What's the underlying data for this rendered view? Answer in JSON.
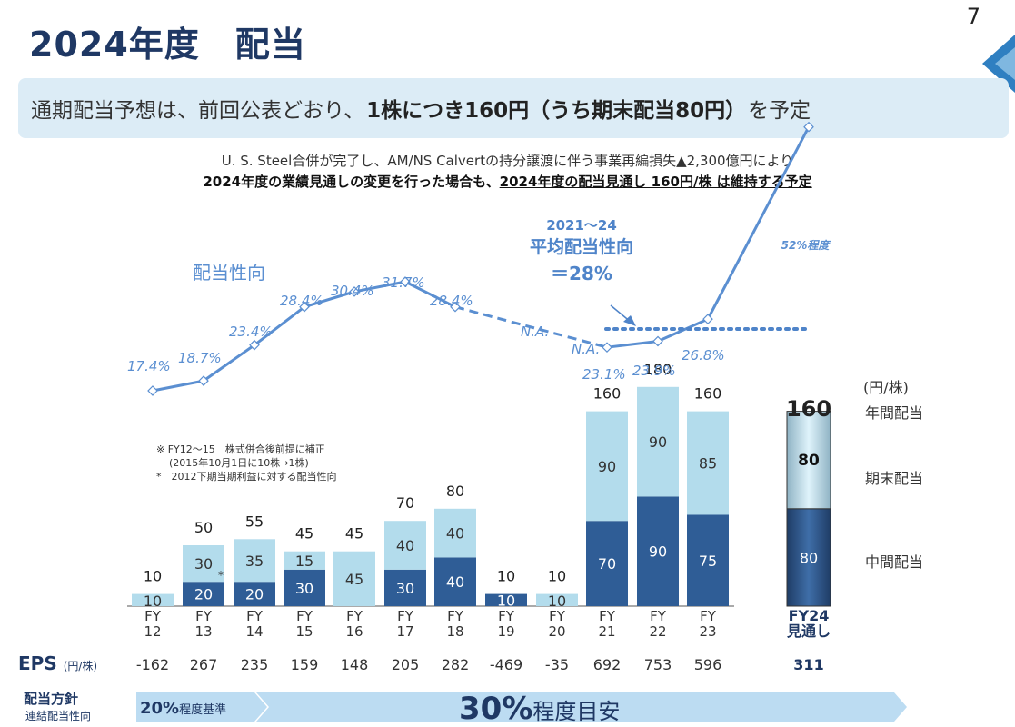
{
  "header": {
    "title": "2024年度　配当",
    "page_number": "7"
  },
  "banner": {
    "prefix": "通期配当予想は、前回公表どおり、",
    "bold": "1株につき160円（うち期末配当80円）",
    "suffix": "を予定"
  },
  "notes": {
    "line1": "U. S. Steel合併が完了し、AM/NS Calvertの持分譲渡に伴う事業再編損失▲2,300億円により",
    "line2_a": "2024年度の業績見通しの変更を行った場合も、",
    "line2_b": "2024年度の配当見通し 160円/株 は維持する予定"
  },
  "footnotes": {
    "f1": "※ FY12～15　株式併合後前提に補正",
    "f2": "(2015年10月1日に10株→1株)",
    "f3": "*　2012下期当期利益に対する配当性向"
  },
  "chart_data": {
    "type": "bar",
    "unit_label": "(円/株)",
    "categories": [
      "FY\n12",
      "FY\n13",
      "FY\n14",
      "FY\n15",
      "FY\n16",
      "FY\n17",
      "FY\n18",
      "FY\n19",
      "FY\n20",
      "FY\n21",
      "FY\n22",
      "FY\n23",
      "FY24\n見通し"
    ],
    "series": [
      {
        "name": "中間配当",
        "values": [
          null,
          20,
          20,
          30,
          null,
          30,
          40,
          10,
          null,
          70,
          90,
          75,
          80
        ]
      },
      {
        "name": "期末配当",
        "values": [
          10,
          30,
          35,
          15,
          45,
          40,
          40,
          null,
          10,
          90,
          90,
          85,
          80
        ]
      }
    ],
    "segment_labels": {
      "interim": [
        "",
        "20",
        "20",
        "30",
        "",
        "30",
        "40",
        "10",
        "",
        "70",
        "90",
        "75",
        "80"
      ],
      "final": [
        "10",
        "30",
        "35",
        "15",
        "45",
        "40",
        "40",
        "",
        "10",
        "90",
        "90",
        "85",
        "80"
      ]
    },
    "annual_labels": [
      "10",
      "50",
      "55",
      "45",
      "45",
      "70",
      "80",
      "10",
      "10",
      "160",
      "180",
      "160",
      "160"
    ],
    "annual_label_name": "年間配当",
    "asterisk": "*",
    "payout": {
      "title": "配当性向",
      "points": [
        {
          "v": 17.4,
          "label": "17.4%"
        },
        {
          "v": 18.7,
          "label": "18.7%"
        },
        {
          "v": 23.4,
          "label": "23.4%"
        },
        {
          "v": 28.4,
          "label": "28.4%"
        },
        {
          "v": 30.4,
          "label": "30.4%"
        },
        {
          "v": 31.7,
          "label": "31.7%"
        },
        {
          "v": 28.4,
          "label": "28.4%"
        },
        {
          "v": null,
          "label": "N.A."
        },
        {
          "v": null,
          "label": "N.A."
        },
        {
          "v": 23.1,
          "label": "23.1%"
        },
        {
          "v": 23.9,
          "label": "23.9%"
        },
        {
          "v": 26.8,
          "label": "26.8%"
        },
        {
          "v": 52,
          "label": "52%程度"
        }
      ],
      "avg_line1": "2021～24",
      "avg_line2": "平均配当性向",
      "avg_line3": "＝28%",
      "avg_value": 28
    },
    "eps_label": "EPS",
    "eps_unit": "(円/株)",
    "eps": [
      "-162",
      "267",
      "235",
      "159",
      "148",
      "205",
      "282",
      "-469",
      "-35",
      "692",
      "753",
      "596",
      "311"
    ],
    "policy": {
      "label": "配当方針",
      "sublabel": "連結配当性向",
      "phase1_big": "20%",
      "phase1_small": "程度基準",
      "phase2_big": "30%",
      "phase2_small": "程度目安"
    },
    "colors": {
      "interim": "#2f5d96",
      "final": "#b3dcec",
      "line": "#5b8fd1",
      "label": "#5b8fd1",
      "avg": "#4f84c9",
      "policy": "#bcdcf2"
    }
  }
}
